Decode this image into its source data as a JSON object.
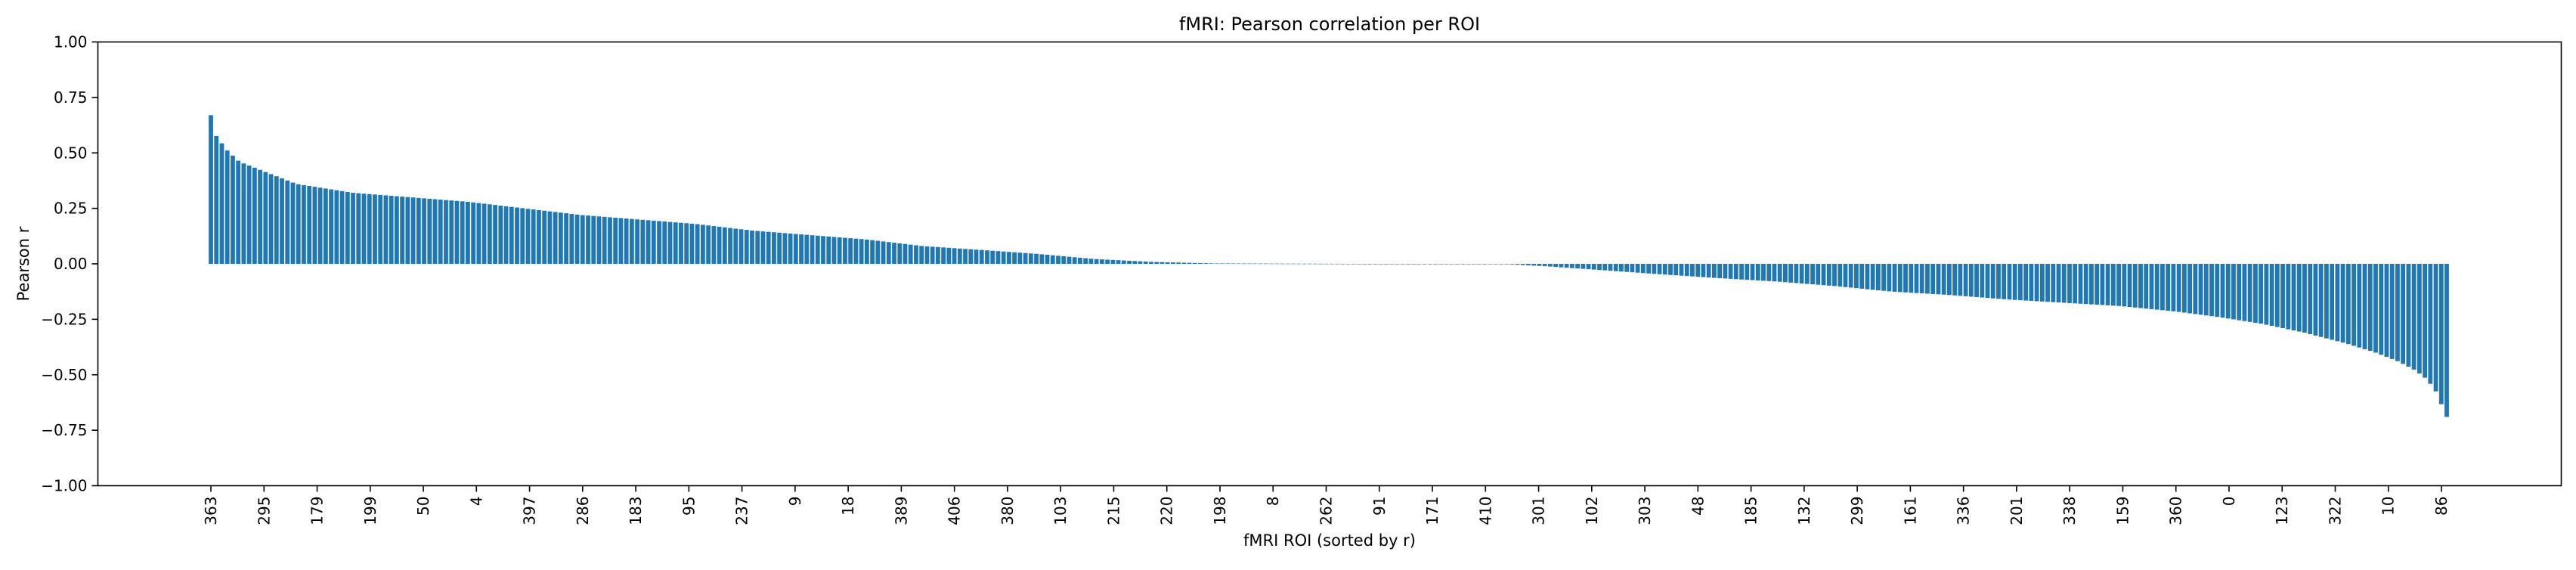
{
  "chart_data": {
    "type": "bar",
    "title": "fMRI: Pearson correlation per ROI",
    "xlabel": "fMRI ROI (sorted by r)",
    "ylabel": "Pearson r",
    "ylim": [
      -1.0,
      1.0
    ],
    "ytick_labels": [
      "−1.00",
      "−0.75",
      "−0.50",
      "−0.25",
      "0.00",
      "0.25",
      "0.50",
      "0.75",
      "1.00"
    ],
    "ytick_values": [
      -1.0,
      -0.75,
      -0.5,
      -0.25,
      0.0,
      0.25,
      0.5,
      0.75,
      1.0
    ],
    "xtick_labels": [
      "363",
      "295",
      "179",
      "199",
      "50",
      "4",
      "397",
      "286",
      "183",
      "95",
      "237",
      "9",
      "18",
      "389",
      "406",
      "380",
      "103",
      "215",
      "220",
      "198",
      "8",
      "262",
      "91",
      "171",
      "410",
      "301",
      "102",
      "303",
      "48",
      "185",
      "132",
      "299",
      "161",
      "336",
      "201",
      "338",
      "159",
      "360",
      "0",
      "123",
      "322",
      "10",
      "86"
    ],
    "n_bars": 410,
    "bar_color": "#1f77b4",
    "grid": false,
    "positive_anchors": [
      [
        0,
        0.67
      ],
      [
        1,
        0.59
      ],
      [
        3,
        0.56
      ],
      [
        5,
        0.52
      ],
      [
        10,
        0.46
      ],
      [
        20,
        0.41
      ],
      [
        30,
        0.36
      ],
      [
        50,
        0.32
      ],
      [
        70,
        0.3
      ],
      [
        90,
        0.28
      ],
      [
        110,
        0.25
      ],
      [
        130,
        0.22
      ],
      [
        150,
        0.2
      ],
      [
        170,
        0.18
      ],
      [
        190,
        0.15
      ],
      [
        210,
        0.13
      ],
      [
        230,
        0.11
      ],
      [
        250,
        0.08
      ],
      [
        270,
        0.063
      ],
      [
        290,
        0.045
      ],
      [
        310,
        0.022
      ],
      [
        330,
        0.009
      ],
      [
        352,
        0.002
      ]
    ],
    "near_zero_span": [
      352,
      456
    ],
    "negative_anchors": [
      [
        456,
        -0.002
      ],
      [
        470,
        -0.012
      ],
      [
        490,
        -0.03
      ],
      [
        510,
        -0.048
      ],
      [
        530,
        -0.065
      ],
      [
        550,
        -0.08
      ],
      [
        570,
        -0.1
      ],
      [
        590,
        -0.125
      ],
      [
        610,
        -0.14
      ],
      [
        630,
        -0.16
      ],
      [
        650,
        -0.175
      ],
      [
        670,
        -0.19
      ],
      [
        690,
        -0.215
      ],
      [
        705,
        -0.24
      ],
      [
        720,
        -0.27
      ],
      [
        735,
        -0.31
      ],
      [
        750,
        -0.36
      ],
      [
        760,
        -0.4
      ],
      [
        768,
        -0.44
      ],
      [
        774,
        -0.48
      ],
      [
        778,
        -0.52
      ],
      [
        781,
        -0.57
      ],
      [
        783,
        -0.63
      ],
      [
        785,
        -0.69
      ]
    ]
  }
}
